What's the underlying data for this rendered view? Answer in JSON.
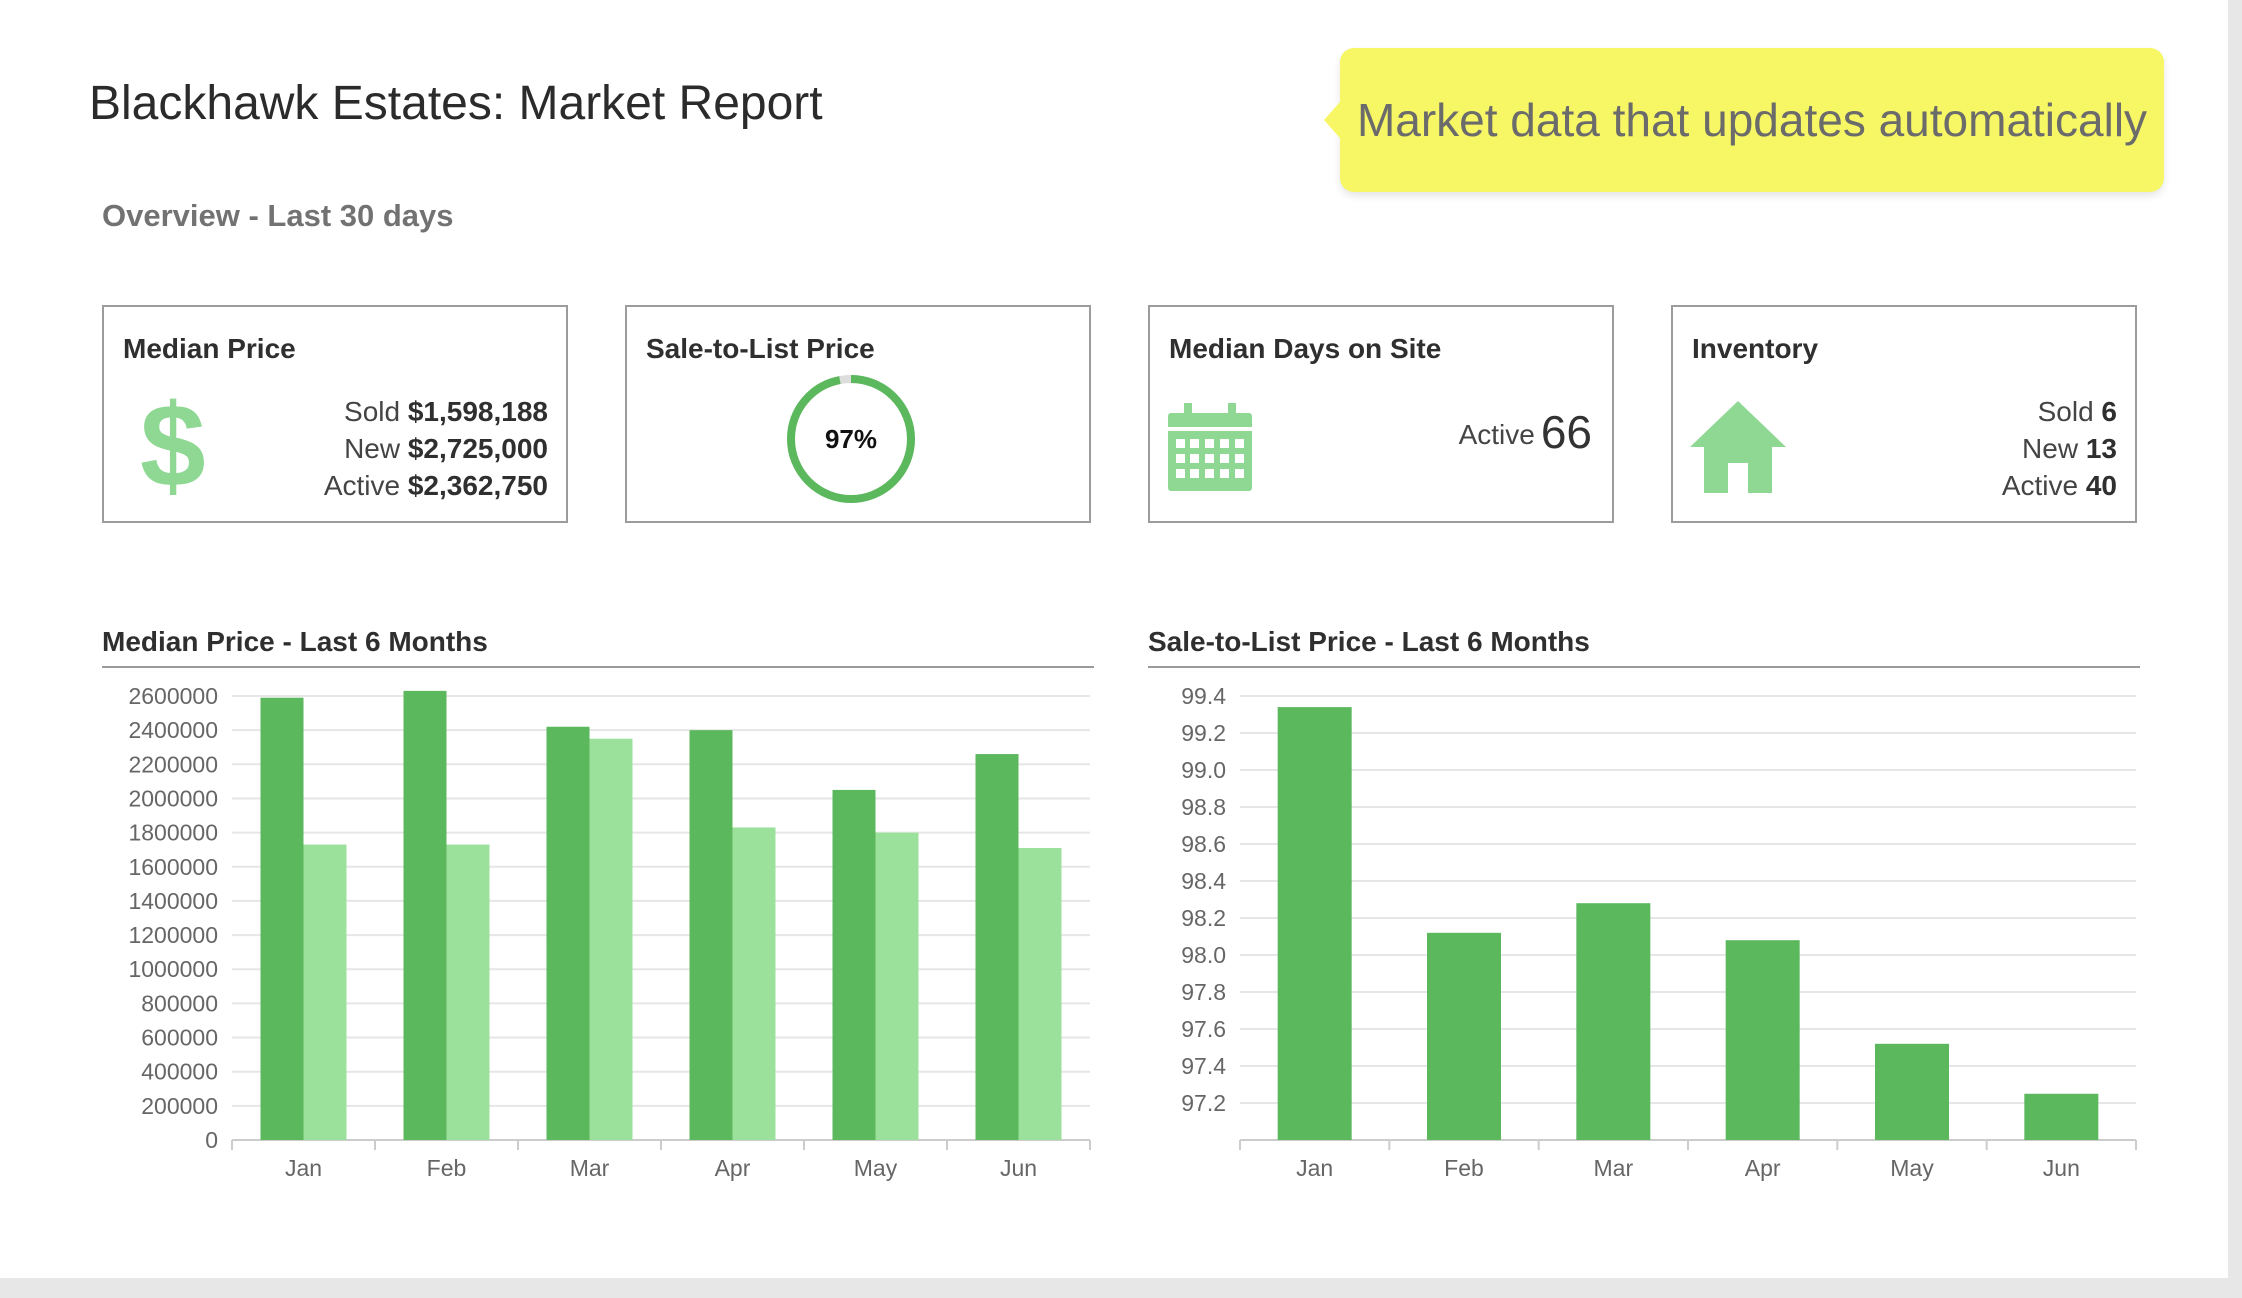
{
  "title": "Blackhawk Estates: Market Report",
  "callout": "Market data that updates automatically",
  "overview": "Overview - Last 30 days",
  "colors": {
    "dark_green": "#5cb85c",
    "light_green": "#9be19b",
    "icon_green": "#8fd894",
    "callout_yellow": "#f7f765"
  },
  "cards": {
    "median_price": {
      "title": "Median Price",
      "icon": "dollar-icon",
      "icon_glyph": "$",
      "rows": [
        {
          "label": "Sold",
          "value": "$1,598,188"
        },
        {
          "label": "New",
          "value": "$2,725,000"
        },
        {
          "label": "Active",
          "value": "$2,362,750"
        }
      ]
    },
    "sale_to_list": {
      "title": "Sale-to-List Price",
      "value": "97%",
      "percent": 97
    },
    "median_days": {
      "title": "Median Days on Site",
      "icon": "calendar-icon",
      "label": "Active",
      "value": "66"
    },
    "inventory": {
      "title": "Inventory",
      "icon": "house-icon",
      "rows": [
        {
          "label": "Sold",
          "value": "6"
        },
        {
          "label": "New",
          "value": "13"
        },
        {
          "label": "Active",
          "value": "40"
        }
      ]
    }
  },
  "chart_data": [
    {
      "type": "bar",
      "title": "Median Price - Last 6 Months",
      "categories": [
        "Jan",
        "Feb",
        "Mar",
        "Apr",
        "May",
        "Jun"
      ],
      "series": [
        {
          "values": [
            2590000,
            2630000,
            2420000,
            2400000,
            2050000,
            2260000
          ]
        },
        {
          "values": [
            1730000,
            1730000,
            2350000,
            1830000,
            1800000,
            1710000
          ]
        }
      ],
      "ylim": [
        0,
        2600000
      ],
      "yticks": [
        0,
        200000,
        400000,
        600000,
        800000,
        1000000,
        1200000,
        1400000,
        1600000,
        1800000,
        2000000,
        2200000,
        2400000,
        2600000
      ],
      "grid": true
    },
    {
      "type": "bar",
      "title": "Sale-to-List Price - Last 6 Months",
      "categories": [
        "Jan",
        "Feb",
        "Mar",
        "Apr",
        "May",
        "Jun"
      ],
      "series": [
        {
          "values": [
            99.34,
            98.12,
            98.28,
            98.08,
            97.52,
            97.25
          ]
        }
      ],
      "ylim": [
        97.0,
        99.4
      ],
      "yticks": [
        97.2,
        97.4,
        97.6,
        97.8,
        98.0,
        98.2,
        98.4,
        98.6,
        98.8,
        99.0,
        99.2,
        99.4
      ],
      "grid": true
    }
  ]
}
